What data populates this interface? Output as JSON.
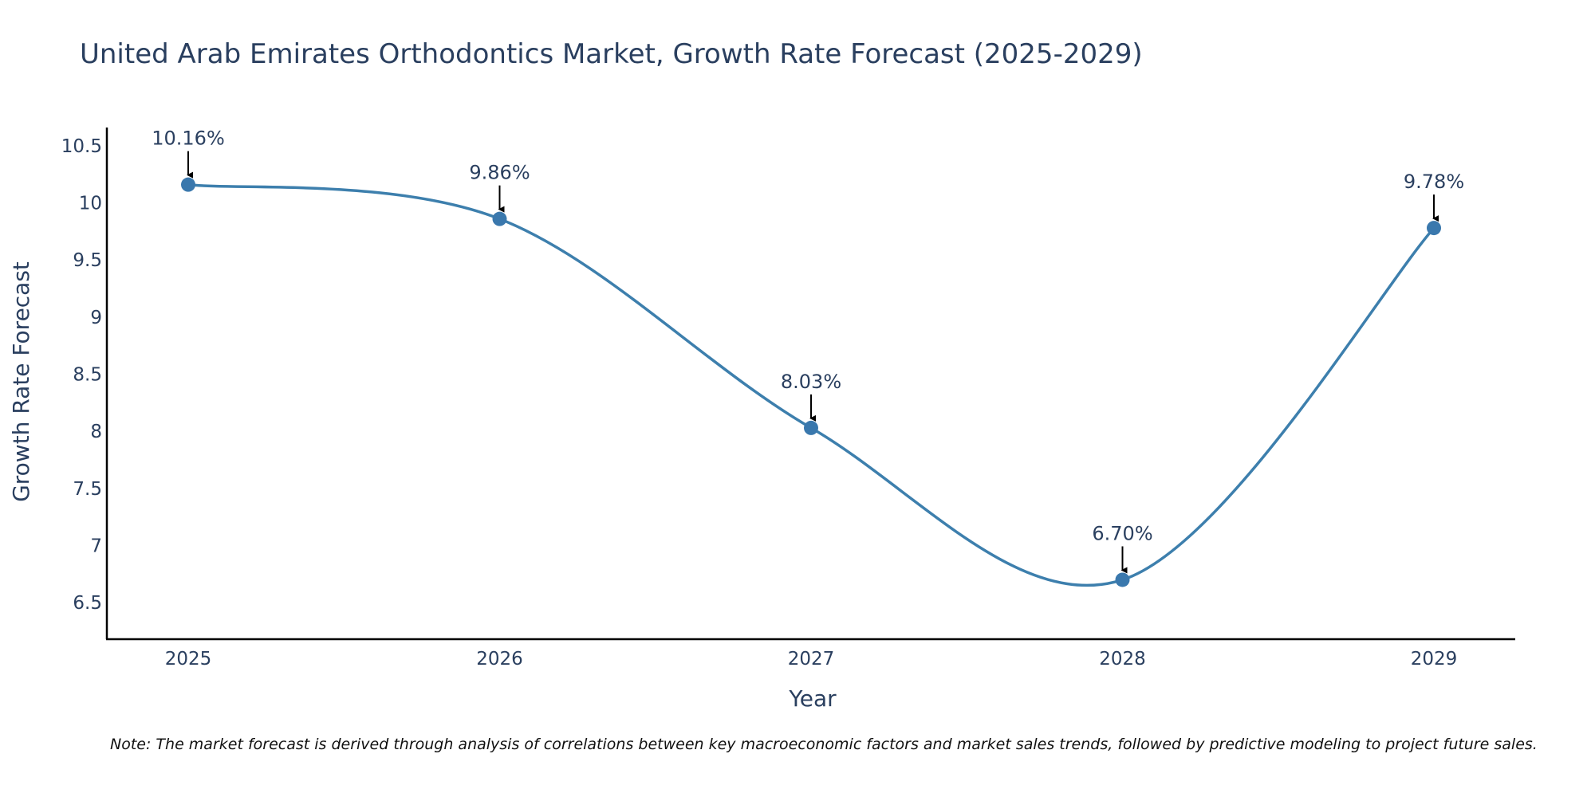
{
  "chart_data": {
    "type": "line",
    "title": "United Arab Emirates Orthodontics Market, Growth Rate Forecast (2025-2029)",
    "xlabel": "Year",
    "ylabel": "Growth Rate Forecast",
    "categories": [
      "2025",
      "2026",
      "2027",
      "2028",
      "2029"
    ],
    "values": [
      10.16,
      9.86,
      8.03,
      6.7,
      9.78
    ],
    "data_labels": [
      "10.16%",
      "9.86%",
      "8.03%",
      "6.70%",
      "9.78%"
    ],
    "yticks": [
      6.5,
      7,
      7.5,
      8,
      8.5,
      9,
      9.5,
      10,
      10.5
    ],
    "ytick_labels": [
      "6.5",
      "7",
      "7.5",
      "8",
      "8.5",
      "9",
      "9.5",
      "10",
      "10.5"
    ],
    "ylim": [
      6.18,
      10.66
    ],
    "line_shape": "spline",
    "grid": false,
    "legend": "none",
    "line_color": "#3d7fad",
    "marker_color": "#3a78ad",
    "arrow_color": "#000000",
    "note": "Note: The market forecast is derived through analysis of correlations between key macroeconomic factors and market sales trends, followed by predictive modeling to project future sales."
  }
}
